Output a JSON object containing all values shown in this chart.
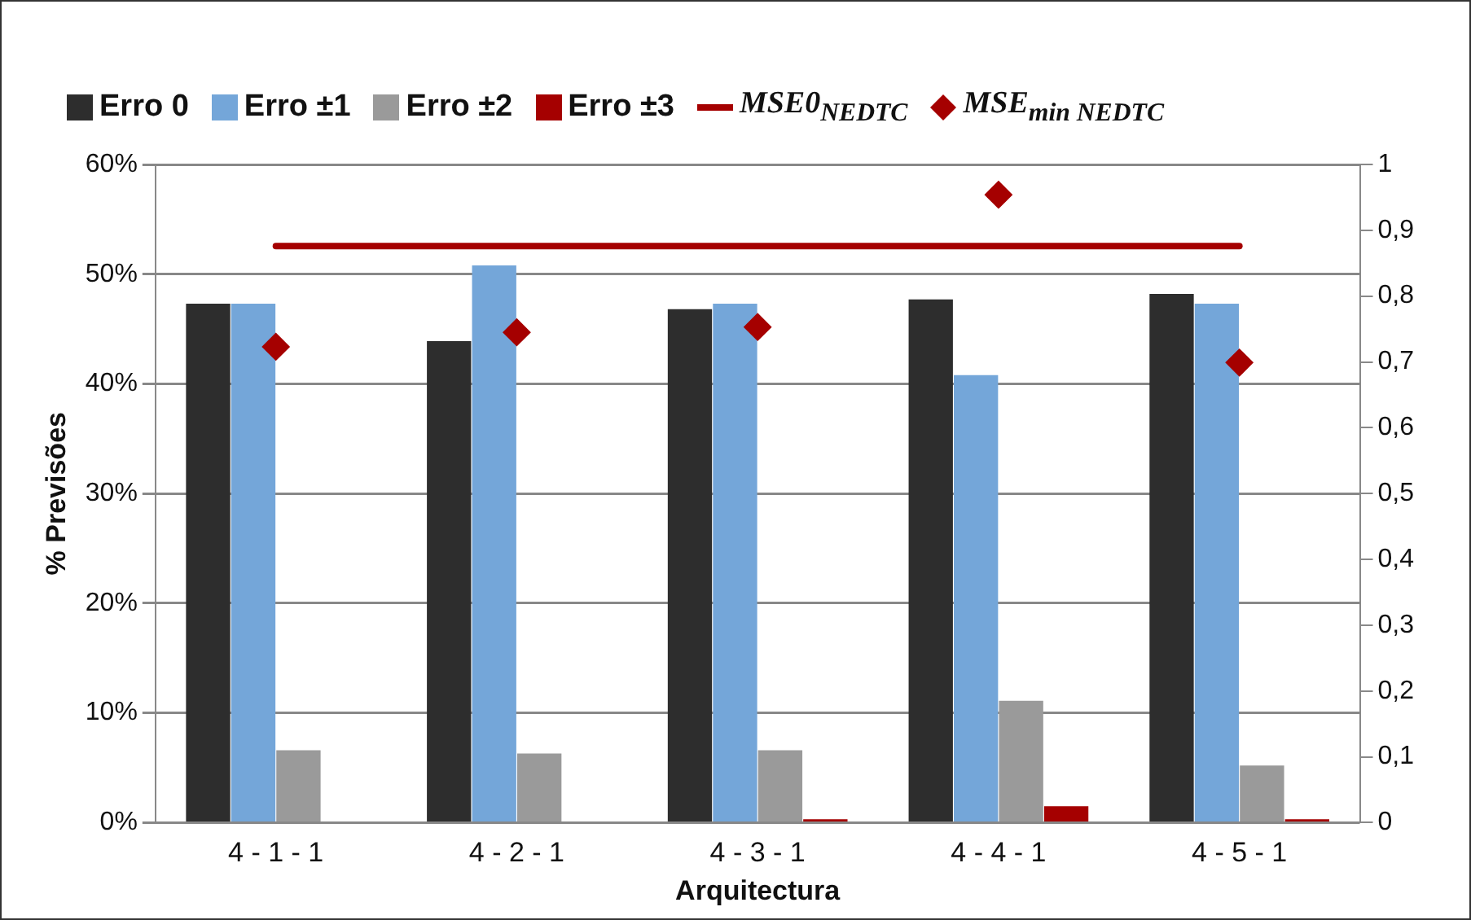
{
  "chart_data": {
    "type": "bar",
    "xlabel": "Arquitectura",
    "ylabel": "% Previsões",
    "categories": [
      "4 - 1 - 1",
      "4 - 2 - 1",
      "4 - 3 - 1",
      "4 - 4 - 1",
      "4 - 5 - 1"
    ],
    "series": [
      {
        "name": "Erro 0",
        "color": "#2d2d2d",
        "values": [
          47.3,
          43.9,
          46.8,
          47.7,
          48.2
        ]
      },
      {
        "name": "Erro ±1",
        "color": "#74a6d9",
        "values": [
          47.3,
          50.8,
          47.3,
          40.8,
          47.3
        ]
      },
      {
        "name": "Erro ±2",
        "color": "#9a9a9a",
        "values": [
          6.6,
          6.3,
          6.6,
          11.1,
          5.2
        ]
      },
      {
        "name": "Erro ±3",
        "color": "#a50000",
        "values": [
          0,
          0,
          0.3,
          1.5,
          0.3
        ]
      },
      {
        "name": "MSE0$_{NEDTC}$",
        "type": "line",
        "axis": "y2",
        "color": "#a50000",
        "marker": "none",
        "values": [
          0.876,
          0.876,
          0.876,
          0.876,
          0.876
        ]
      },
      {
        "name": "MSE$_{min NEDTC}$",
        "type": "scatter",
        "axis": "y2",
        "color": "#a50000",
        "marker": "diamond",
        "x": [
          "4 - 1 - 1",
          "4 - 2 - 1",
          "4 - 3 - 1",
          "4 - 4 - 1",
          "4 - 5 - 1"
        ],
        "values": [
          0.723,
          0.745,
          0.753,
          0.954,
          0.699
        ]
      }
    ],
    "ylim": [
      0,
      60
    ],
    "yticks": [
      {
        "value": 0,
        "label": "0%"
      },
      {
        "value": 10,
        "label": "10%"
      },
      {
        "value": 20,
        "label": "20%"
      },
      {
        "value": 30,
        "label": "30%"
      },
      {
        "value": 40,
        "label": "40%"
      },
      {
        "value": 50,
        "label": "50%"
      },
      {
        "value": 60,
        "label": "60%"
      }
    ],
    "y2lim": [
      0,
      1
    ],
    "y2ticks": [
      {
        "value": 0,
        "label": "0"
      },
      {
        "value": 0.1,
        "label": "0,1"
      },
      {
        "value": 0.2,
        "label": "0,2"
      },
      {
        "value": 0.3,
        "label": "0,3"
      },
      {
        "value": 0.4,
        "label": "0,4"
      },
      {
        "value": 0.5,
        "label": "0,5"
      },
      {
        "value": 0.6,
        "label": "0,6"
      },
      {
        "value": 0.7,
        "label": "0,7"
      },
      {
        "value": 0.8,
        "label": "0,8"
      },
      {
        "value": 0.9,
        "label": "0,9"
      },
      {
        "value": 1,
        "label": "1"
      }
    ],
    "grid": "y",
    "legend": "top"
  }
}
